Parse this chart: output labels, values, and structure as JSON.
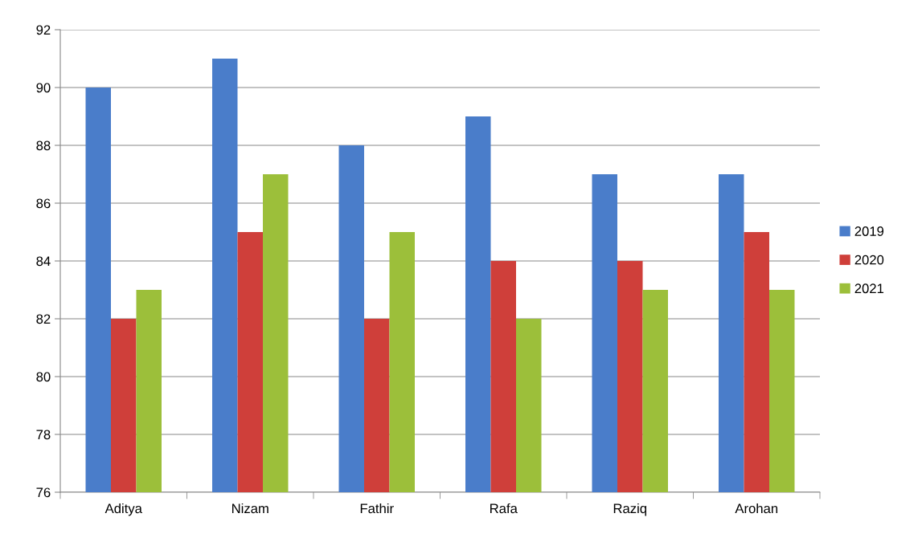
{
  "chart_data": {
    "type": "bar",
    "categories": [
      "Aditya",
      "Nizam",
      "Fathir",
      "Rafa",
      "Raziq",
      "Arohan"
    ],
    "series": [
      {
        "name": "2019",
        "color": "#4a7dca",
        "values": [
          90,
          91,
          88,
          89,
          87,
          87
        ]
      },
      {
        "name": "2020",
        "color": "#cf3f3a",
        "values": [
          82,
          85,
          82,
          84,
          84,
          85
        ]
      },
      {
        "name": "2021",
        "color": "#9cbf3a",
        "values": [
          83,
          87,
          85,
          82,
          83,
          83
        ]
      }
    ],
    "ylim": [
      76,
      92
    ],
    "yticks": [
      76,
      78,
      80,
      82,
      84,
      86,
      88,
      90,
      92
    ],
    "grid": "y",
    "legend": "right"
  }
}
